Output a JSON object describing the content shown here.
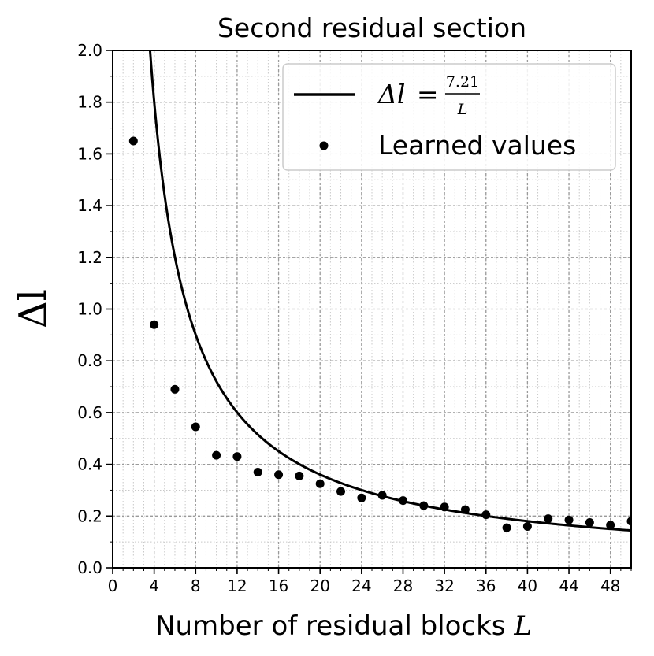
{
  "chart_data": {
    "type": "scatter",
    "title": "Second residual section",
    "xlabel": "Number of residual blocks",
    "xlabel_symbol": "L",
    "ylabel": "Δl",
    "xlim": [
      0,
      50
    ],
    "ylim": [
      0,
      2.0
    ],
    "x_ticks": [
      0,
      4,
      8,
      12,
      16,
      20,
      24,
      28,
      32,
      36,
      40,
      44,
      48
    ],
    "x_tick_labels": [
      "0",
      "4",
      "8",
      "12",
      "16",
      "20",
      "24",
      "28",
      "32",
      "36",
      "40",
      "44",
      "48"
    ],
    "y_ticks": [
      0.0,
      0.2,
      0.4,
      0.6,
      0.8,
      1.0,
      1.2,
      1.4,
      1.6,
      1.8,
      2.0
    ],
    "y_tick_labels": [
      "0.0",
      "0.2",
      "0.4",
      "0.6",
      "0.8",
      "1.0",
      "1.2",
      "1.4",
      "1.6",
      "1.8",
      "2.0"
    ],
    "grid": true,
    "minor_grid": true,
    "legend_position": "top-right",
    "series": [
      {
        "name": "Δl = 7.21 / L",
        "kind": "line",
        "formula_constant": 7.21,
        "color": "#000000"
      },
      {
        "name": "Learned values",
        "kind": "scatter",
        "color": "#000000",
        "x": [
          2,
          4,
          6,
          8,
          10,
          12,
          14,
          16,
          18,
          20,
          22,
          24,
          26,
          28,
          30,
          32,
          34,
          36,
          38,
          40,
          42,
          44,
          46,
          48,
          50
        ],
        "y": [
          1.65,
          0.94,
          0.69,
          0.545,
          0.435,
          0.43,
          0.37,
          0.36,
          0.355,
          0.325,
          0.295,
          0.27,
          0.28,
          0.26,
          0.24,
          0.235,
          0.225,
          0.205,
          0.155,
          0.16,
          0.19,
          0.185,
          0.175,
          0.165,
          0.18
        ]
      }
    ],
    "legend": {
      "line_label_lhs": "Δl",
      "line_label_equals": "=",
      "line_label_numerator": "7.21",
      "line_label_denominator": "L",
      "scatter_label": "Learned values"
    }
  }
}
